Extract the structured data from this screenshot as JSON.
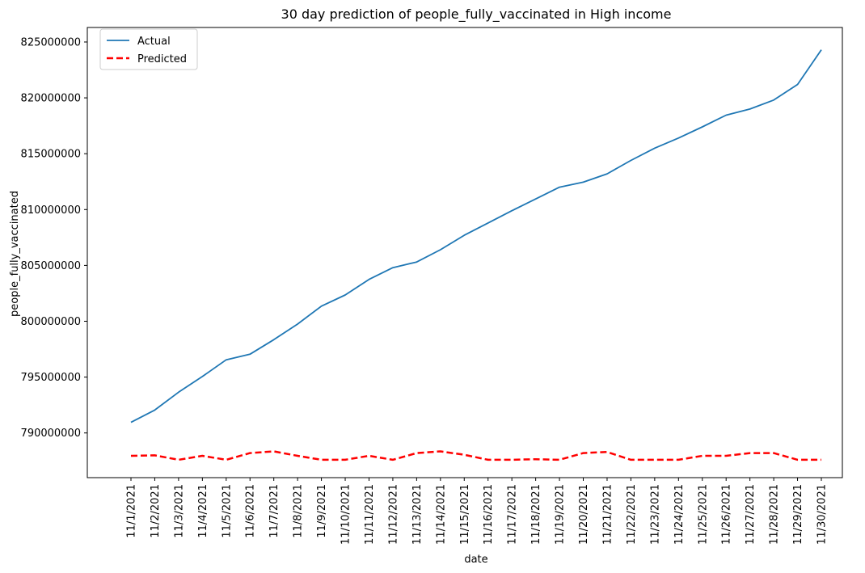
{
  "chart_data": {
    "type": "line",
    "title": "30 day prediction of people_fully_vaccinated in High income",
    "xlabel": "date",
    "ylabel": "people_fully_vaccinated",
    "x": [
      "11/1/2021",
      "11/2/2021",
      "11/3/2021",
      "11/4/2021",
      "11/5/2021",
      "11/6/2021",
      "11/7/2021",
      "11/8/2021",
      "11/9/2021",
      "11/10/2021",
      "11/11/2021",
      "11/12/2021",
      "11/13/2021",
      "11/14/2021",
      "11/15/2021",
      "11/16/2021",
      "11/17/2021",
      "11/18/2021",
      "11/19/2021",
      "11/20/2021",
      "11/21/2021",
      "11/22/2021",
      "11/23/2021",
      "11/24/2021",
      "11/25/2021",
      "11/26/2021",
      "11/27/2021",
      "11/28/2021",
      "11/29/2021",
      "11/30/2021"
    ],
    "ylim": [
      786000000,
      826300000
    ],
    "yticks": [
      790000000,
      795000000,
      800000000,
      805000000,
      810000000,
      815000000,
      820000000,
      825000000
    ],
    "ytick_labels": [
      "790000000",
      "795000000",
      "800000000",
      "805000000",
      "810000000",
      "815000000",
      "820000000",
      "825000000"
    ],
    "grid": false,
    "legend_position": "top-left",
    "series": [
      {
        "name": "Actual",
        "color": "#1f77b4",
        "style": "solid",
        "values": [
          790950000,
          792050000,
          793650000,
          795050000,
          796550000,
          797050000,
          798350000,
          799750000,
          801350000,
          802350000,
          803750000,
          804800000,
          805300000,
          806400000,
          807700000,
          808800000,
          809900000,
          810950000,
          812000000,
          812450000,
          813200000,
          814400000,
          815500000,
          816400000,
          817400000,
          818450000,
          819000000,
          819800000,
          821200000,
          824300000
        ]
      },
      {
        "name": "Predicted",
        "color": "#ff0000",
        "style": "dashed",
        "values": [
          787950000,
          788000000,
          787600000,
          787950000,
          787600000,
          788200000,
          788350000,
          787950000,
          787600000,
          787600000,
          787950000,
          787600000,
          788200000,
          788350000,
          788050000,
          787600000,
          787600000,
          787650000,
          787600000,
          788200000,
          788300000,
          787600000,
          787600000,
          787600000,
          787950000,
          787950000,
          788200000,
          788200000,
          787600000,
          787600000
        ]
      }
    ]
  }
}
